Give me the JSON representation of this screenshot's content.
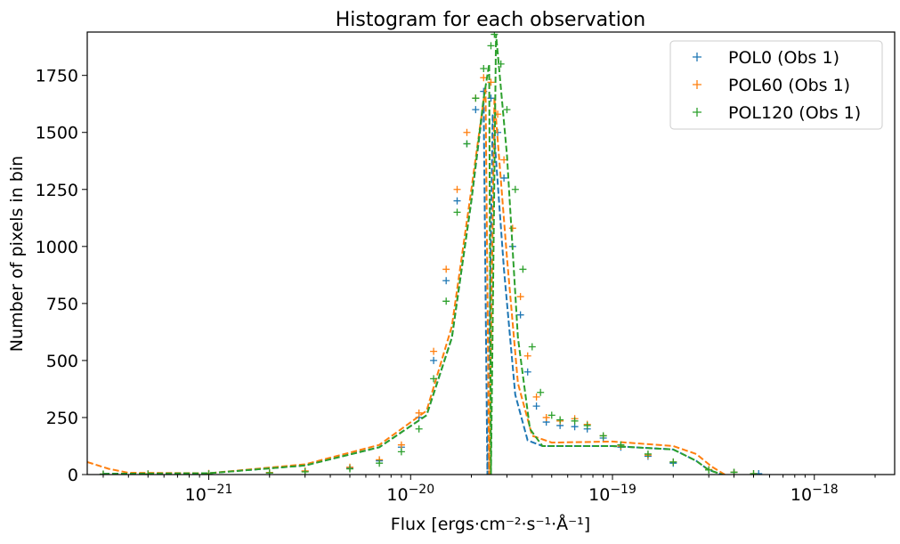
{
  "chart_data": {
    "type": "scatter",
    "title": "Histogram for each observation",
    "xlabel": "Flux [ergs·cm⁻²·s⁻¹·Å⁻¹]",
    "ylabel": "Number of pixels in bin",
    "xscale": "log",
    "xlim": [
      2.5e-22,
      2.5e-18
    ],
    "ylim": [
      0,
      1940
    ],
    "x_ticks": [
      {
        "value": 1e-21,
        "base": "10",
        "exp": "−21"
      },
      {
        "value": 1e-20,
        "base": "10",
        "exp": "−20"
      },
      {
        "value": 1e-19,
        "base": "10",
        "exp": "−19"
      },
      {
        "value": 1e-18,
        "base": "10",
        "exp": "−18"
      }
    ],
    "y_ticks": [
      "0",
      "250",
      "500",
      "750",
      "1000",
      "1250",
      "1500",
      "1750"
    ],
    "legend_position": "top-right",
    "grid": false,
    "series": [
      {
        "name": "POL0 (Obs 1)",
        "color": "#1f77b4",
        "marker": "plus",
        "points": [
          [
            3e-22,
            2
          ],
          [
            5e-22,
            3
          ],
          [
            1e-21,
            4
          ],
          [
            2e-21,
            8
          ],
          [
            3e-21,
            15
          ],
          [
            5e-21,
            30
          ],
          [
            7e-21,
            60
          ],
          [
            9e-21,
            120
          ],
          [
            1.1e-20,
            250
          ],
          [
            1.3e-20,
            500
          ],
          [
            1.5e-20,
            850
          ],
          [
            1.7e-20,
            1200
          ],
          [
            1.9e-20,
            1450
          ],
          [
            2.1e-20,
            1600
          ],
          [
            2.3e-20,
            1680
          ],
          [
            2.5e-20,
            1650
          ],
          [
            2.7e-20,
            1500
          ],
          [
            2.9e-20,
            1300
          ],
          [
            3.2e-20,
            1000
          ],
          [
            3.5e-20,
            700
          ],
          [
            3.8e-20,
            450
          ],
          [
            4.2e-20,
            300
          ],
          [
            4.7e-20,
            230
          ],
          [
            5.5e-20,
            215
          ],
          [
            6.5e-20,
            210
          ],
          [
            7.5e-20,
            200
          ],
          [
            9e-20,
            160
          ],
          [
            1.1e-19,
            120
          ],
          [
            1.5e-19,
            80
          ],
          [
            2e-19,
            50
          ],
          [
            3e-19,
            20
          ],
          [
            4e-19,
            10
          ],
          [
            5.3e-19,
            4
          ]
        ],
        "fit": [
          [
            3e-22,
            3
          ],
          [
            1e-21,
            6
          ],
          [
            3e-21,
            40
          ],
          [
            7e-21,
            120
          ],
          [
            1.2e-20,
            260
          ],
          [
            1.6e-20,
            600
          ],
          [
            2e-20,
            1200
          ],
          [
            2.3e-20,
            1630
          ],
          [
            2.4e-20,
            0
          ],
          [
            2.55e-20,
            1580
          ],
          [
            2.9e-20,
            900
          ],
          [
            3.3e-20,
            350
          ],
          [
            3.8e-20,
            150
          ],
          [
            4.5e-20,
            125
          ],
          [
            1e-19,
            125
          ],
          [
            2e-19,
            110
          ],
          [
            2.6e-19,
            60
          ],
          [
            3e-19,
            20
          ],
          [
            3.5e-19,
            0
          ]
        ]
      },
      {
        "name": "POL60 (Obs 1)",
        "color": "#ff7f0e",
        "marker": "plus",
        "points": [
          [
            3e-22,
            2
          ],
          [
            5e-22,
            3
          ],
          [
            1e-21,
            5
          ],
          [
            2e-21,
            9
          ],
          [
            3e-21,
            16
          ],
          [
            5e-21,
            32
          ],
          [
            7e-21,
            65
          ],
          [
            9e-21,
            130
          ],
          [
            1.1e-20,
            270
          ],
          [
            1.3e-20,
            540
          ],
          [
            1.5e-20,
            900
          ],
          [
            1.7e-20,
            1250
          ],
          [
            1.9e-20,
            1500
          ],
          [
            2.1e-20,
            1650
          ],
          [
            2.3e-20,
            1740
          ],
          [
            2.5e-20,
            1720
          ],
          [
            2.7e-20,
            1580
          ],
          [
            2.9e-20,
            1380
          ],
          [
            3.2e-20,
            1080
          ],
          [
            3.5e-20,
            780
          ],
          [
            3.8e-20,
            520
          ],
          [
            4.2e-20,
            340
          ],
          [
            4.7e-20,
            250
          ],
          [
            5.5e-20,
            235
          ],
          [
            6.5e-20,
            245
          ],
          [
            7.5e-20,
            220
          ],
          [
            9e-20,
            170
          ],
          [
            1.1e-19,
            125
          ],
          [
            1.5e-19,
            85
          ],
          [
            2e-19,
            55
          ],
          [
            3e-19,
            22
          ],
          [
            4e-19,
            10
          ],
          [
            5e-19,
            4
          ]
        ],
        "fit": [
          [
            2.5e-22,
            55
          ],
          [
            3.2e-22,
            25
          ],
          [
            4e-22,
            8
          ],
          [
            1e-21,
            6
          ],
          [
            3e-21,
            45
          ],
          [
            7e-21,
            130
          ],
          [
            1.2e-20,
            280
          ],
          [
            1.6e-20,
            650
          ],
          [
            2e-20,
            1250
          ],
          [
            2.35e-20,
            1700
          ],
          [
            2.45e-20,
            0
          ],
          [
            2.6e-20,
            1650
          ],
          [
            3e-20,
            950
          ],
          [
            3.4e-20,
            400
          ],
          [
            4e-20,
            170
          ],
          [
            5e-20,
            140
          ],
          [
            1e-19,
            145
          ],
          [
            2e-19,
            125
          ],
          [
            2.6e-19,
            90
          ],
          [
            3.1e-19,
            35
          ],
          [
            3.6e-19,
            0
          ]
        ]
      },
      {
        "name": "POL120 (Obs 1)",
        "color": "#2ca02c",
        "marker": "plus",
        "points": [
          [
            3e-22,
            2
          ],
          [
            5e-22,
            2
          ],
          [
            1e-21,
            3
          ],
          [
            2e-21,
            7
          ],
          [
            3e-21,
            12
          ],
          [
            5e-21,
            25
          ],
          [
            7e-21,
            50
          ],
          [
            9e-21,
            100
          ],
          [
            1.1e-20,
            200
          ],
          [
            1.3e-20,
            420
          ],
          [
            1.5e-20,
            760
          ],
          [
            1.7e-20,
            1150
          ],
          [
            1.9e-20,
            1450
          ],
          [
            2.1e-20,
            1650
          ],
          [
            2.3e-20,
            1780
          ],
          [
            2.5e-20,
            1880
          ],
          [
            2.6e-20,
            1930
          ],
          [
            2.8e-20,
            1800
          ],
          [
            3e-20,
            1600
          ],
          [
            3.3e-20,
            1250
          ],
          [
            3.6e-20,
            900
          ],
          [
            4e-20,
            560
          ],
          [
            4.4e-20,
            360
          ],
          [
            5e-20,
            260
          ],
          [
            5.5e-20,
            240
          ],
          [
            6.5e-20,
            235
          ],
          [
            7.5e-20,
            215
          ],
          [
            9e-20,
            170
          ],
          [
            1.1e-19,
            130
          ],
          [
            1.5e-19,
            90
          ],
          [
            2e-19,
            55
          ],
          [
            3e-19,
            20
          ],
          [
            4e-19,
            10
          ],
          [
            5e-19,
            4
          ]
        ],
        "fit": [
          [
            3e-22,
            3
          ],
          [
            1e-21,
            6
          ],
          [
            3e-21,
            40
          ],
          [
            7e-21,
            120
          ],
          [
            1.2e-20,
            260
          ],
          [
            1.6e-20,
            600
          ],
          [
            2e-20,
            1200
          ],
          [
            2.3e-20,
            1650
          ],
          [
            2.45e-20,
            1800
          ],
          [
            2.5e-20,
            0
          ],
          [
            2.65e-20,
            1930
          ],
          [
            3e-20,
            1400
          ],
          [
            3.4e-20,
            600
          ],
          [
            3.9e-20,
            200
          ],
          [
            4.5e-20,
            125
          ],
          [
            1e-19,
            125
          ],
          [
            2e-19,
            110
          ],
          [
            2.6e-19,
            60
          ],
          [
            3e-19,
            20
          ],
          [
            3.5e-19,
            0
          ]
        ]
      }
    ]
  }
}
